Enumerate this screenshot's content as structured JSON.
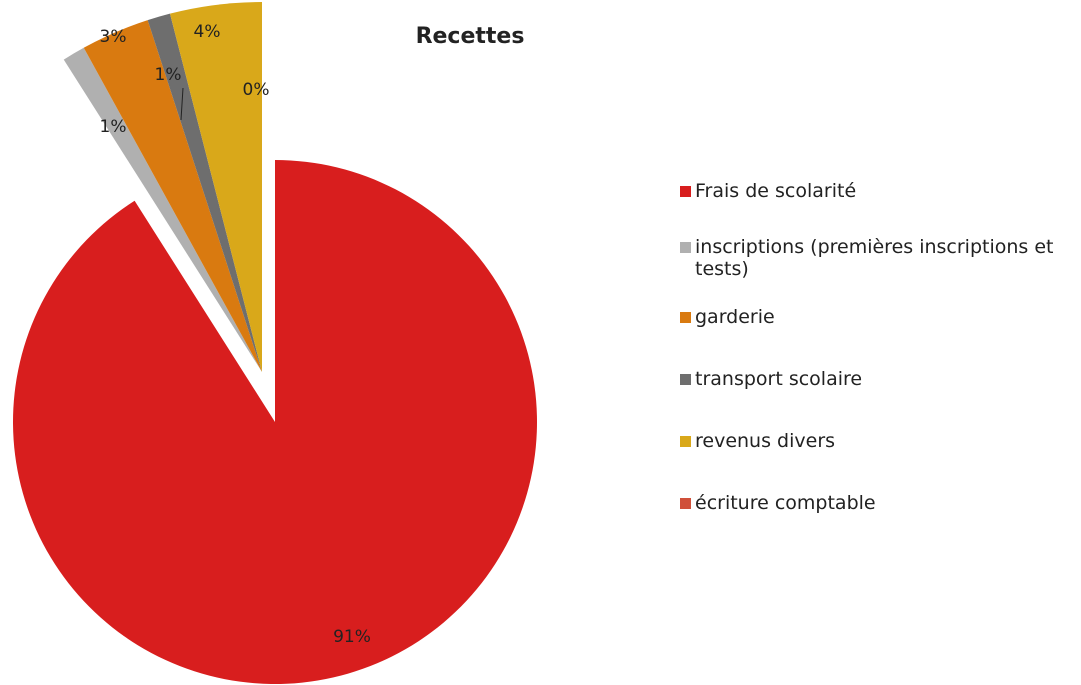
{
  "chart_data": {
    "type": "pie",
    "title": "Recettes",
    "categories": [
      "Frais de scolarité",
      "inscriptions (premières inscriptions et tests)",
      "garderie",
      "transport scolaire",
      "revenus divers",
      "écriture comptable"
    ],
    "values": [
      91,
      1,
      3,
      1,
      4,
      0
    ],
    "value_labels": [
      "91%",
      "1%",
      "3%",
      "1%",
      "4%",
      "0%"
    ],
    "colors": [
      "#d81e1e",
      "#b0b0b0",
      "#d97a10",
      "#6e6e6e",
      "#d9a81a",
      "#d0503a"
    ],
    "legend": "right"
  }
}
